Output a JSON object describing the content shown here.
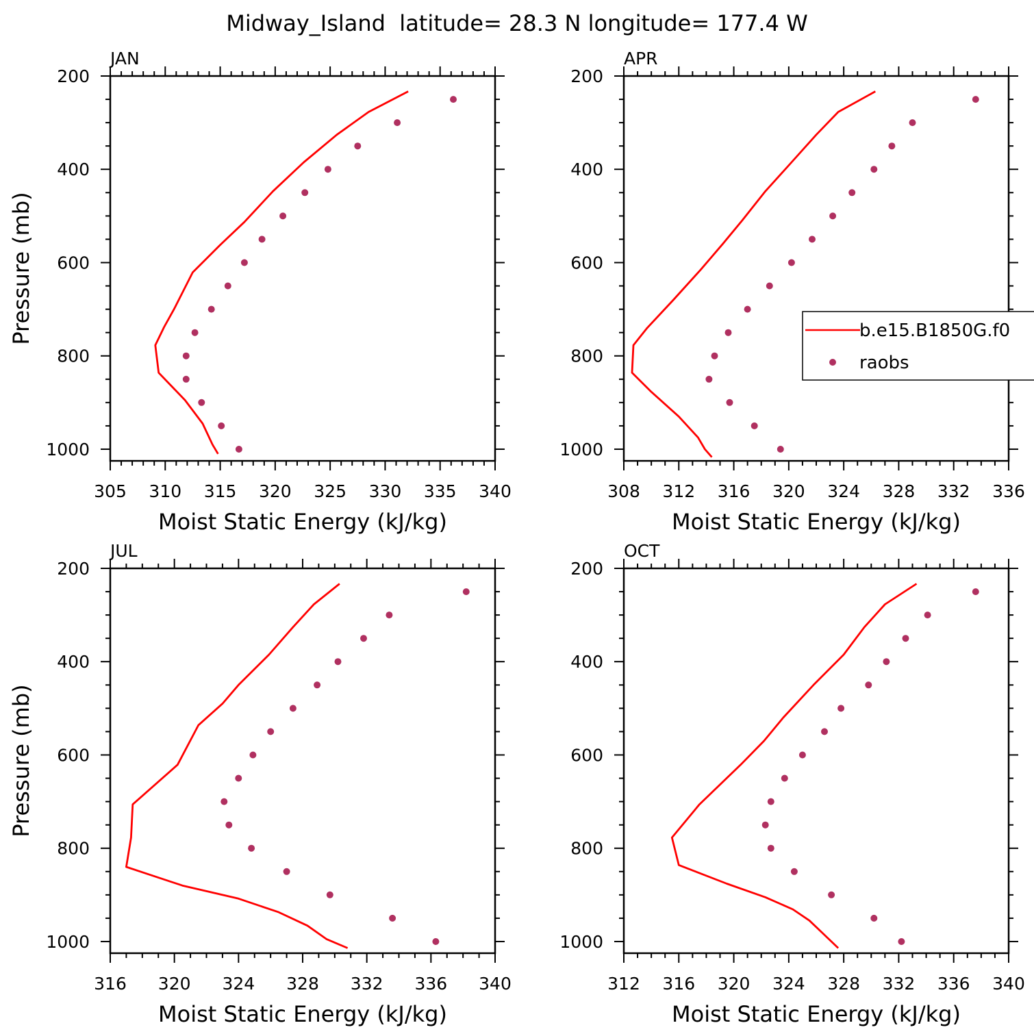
{
  "figure": {
    "title": "Midway_Island  latitude= 28.3 N longitude= 177.4 W"
  },
  "legend": {
    "model_label": "b.e15.B1850G.f0",
    "obs_label": "raobs",
    "placement": "right side of APR panel"
  },
  "colors": {
    "model_line": "#ff0000",
    "obs_marker": "#b03060"
  },
  "chart_data": [
    {
      "type": "line",
      "panel": "JAN",
      "xlabel": "Moist Static Energy (kJ/kg)",
      "ylabel": "Pressure (mb)",
      "xlim": [
        305,
        340
      ],
      "xticks": [
        305,
        310,
        315,
        320,
        325,
        330,
        335,
        340
      ],
      "ylim": [
        1025,
        200
      ],
      "yticks": [
        200,
        400,
        600,
        800,
        1000
      ],
      "series": [
        {
          "name": "b.e15.B1850G.f0",
          "points": [
            [
              332.1,
              233
            ],
            [
              328.5,
              277
            ],
            [
              325.6,
              326
            ],
            [
              322.6,
              385
            ],
            [
              319.8,
              447
            ],
            [
              317.2,
              513
            ],
            [
              315.0,
              562
            ],
            [
              312.5,
              621
            ],
            [
              310.8,
              700
            ],
            [
              309.9,
              738
            ],
            [
              309.1,
              777
            ],
            [
              309.4,
              836
            ],
            [
              311.8,
              895
            ],
            [
              313.4,
              945
            ],
            [
              314.3,
              990
            ],
            [
              314.8,
              1010
            ]
          ]
        },
        {
          "name": "raobs",
          "points": [
            [
              336.2,
              250
            ],
            [
              331.1,
              300
            ],
            [
              327.5,
              350
            ],
            [
              324.8,
              400
            ],
            [
              322.7,
              450
            ],
            [
              320.7,
              500
            ],
            [
              318.8,
              550
            ],
            [
              317.2,
              600
            ],
            [
              315.7,
              650
            ],
            [
              314.2,
              700
            ],
            [
              312.7,
              750
            ],
            [
              311.9,
              800
            ],
            [
              311.9,
              850
            ],
            [
              313.3,
              900
            ],
            [
              315.1,
              950
            ],
            [
              316.7,
              1000
            ]
          ]
        }
      ]
    },
    {
      "type": "line",
      "panel": "APR",
      "xlabel": "Moist Static Energy (kJ/kg)",
      "ylabel": "",
      "xlim": [
        308,
        336
      ],
      "xticks": [
        308,
        312,
        316,
        320,
        324,
        328,
        332,
        336
      ],
      "ylim": [
        1025,
        200
      ],
      "yticks": [
        200,
        400,
        600,
        800,
        1000
      ],
      "series": [
        {
          "name": "b.e15.B1850G.f0",
          "points": [
            [
              326.3,
              233
            ],
            [
              323.6,
              277
            ],
            [
              322.0,
              326
            ],
            [
              320.2,
              385
            ],
            [
              318.3,
              447
            ],
            [
              316.6,
              510
            ],
            [
              315.2,
              560
            ],
            [
              313.6,
              615
            ],
            [
              311.6,
              680
            ],
            [
              309.7,
              740
            ],
            [
              308.7,
              777
            ],
            [
              308.6,
              836
            ],
            [
              310.0,
              877
            ],
            [
              312.0,
              930
            ],
            [
              313.4,
              975
            ],
            [
              313.9,
              1000
            ],
            [
              314.4,
              1017
            ]
          ]
        },
        {
          "name": "raobs",
          "points": [
            [
              333.6,
              250
            ],
            [
              329.0,
              300
            ],
            [
              327.5,
              350
            ],
            [
              326.2,
              400
            ],
            [
              324.6,
              450
            ],
            [
              323.2,
              500
            ],
            [
              321.7,
              550
            ],
            [
              320.2,
              600
            ],
            [
              318.6,
              650
            ],
            [
              317.0,
              700
            ],
            [
              315.6,
              750
            ],
            [
              314.6,
              800
            ],
            [
              314.2,
              850
            ],
            [
              315.7,
              900
            ],
            [
              317.5,
              950
            ],
            [
              319.4,
              1000
            ]
          ]
        }
      ]
    },
    {
      "type": "line",
      "panel": "JUL",
      "xlabel": "Moist Static Energy (kJ/kg)",
      "ylabel": "Pressure (mb)",
      "xlim": [
        316,
        340
      ],
      "xticks": [
        316,
        320,
        324,
        328,
        332,
        336,
        340
      ],
      "ylim": [
        1025,
        200
      ],
      "yticks": [
        200,
        400,
        600,
        800,
        1000
      ],
      "series": [
        {
          "name": "b.e15.B1850G.f0",
          "points": [
            [
              330.3,
              233
            ],
            [
              328.7,
              277
            ],
            [
              327.4,
              326
            ],
            [
              325.9,
              385
            ],
            [
              324.0,
              450
            ],
            [
              323.0,
              490
            ],
            [
              321.5,
              536
            ],
            [
              320.2,
              621
            ],
            [
              317.4,
              706
            ],
            [
              317.3,
              777
            ],
            [
              317.0,
              840
            ],
            [
              320.5,
              880
            ],
            [
              324.0,
              908
            ],
            [
              326.5,
              937
            ],
            [
              328.3,
              966
            ],
            [
              329.5,
              995
            ],
            [
              330.8,
              1014
            ]
          ]
        },
        {
          "name": "raobs",
          "points": [
            [
              338.2,
              250
            ],
            [
              333.4,
              300
            ],
            [
              331.8,
              350
            ],
            [
              330.2,
              400
            ],
            [
              328.9,
              450
            ],
            [
              327.4,
              500
            ],
            [
              326.0,
              550
            ],
            [
              324.9,
              600
            ],
            [
              324.0,
              650
            ],
            [
              323.1,
              700
            ],
            [
              323.4,
              750
            ],
            [
              324.8,
              800
            ],
            [
              327.0,
              850
            ],
            [
              329.7,
              900
            ],
            [
              333.6,
              950
            ],
            [
              336.3,
              1000
            ]
          ]
        }
      ]
    },
    {
      "type": "line",
      "panel": "OCT",
      "xlabel": "Moist Static Energy (kJ/kg)",
      "ylabel": "",
      "xlim": [
        312,
        340
      ],
      "xticks": [
        312,
        316,
        320,
        324,
        328,
        332,
        336,
        340
      ],
      "ylim": [
        1025,
        200
      ],
      "yticks": [
        200,
        400,
        600,
        800,
        1000
      ],
      "series": [
        {
          "name": "b.e15.B1850G.f0",
          "points": [
            [
              333.3,
              233
            ],
            [
              331.0,
              277
            ],
            [
              329.5,
              326
            ],
            [
              328.0,
              385
            ],
            [
              325.8,
              450
            ],
            [
              323.6,
              520
            ],
            [
              322.2,
              570
            ],
            [
              320.5,
              621
            ],
            [
              317.5,
              706
            ],
            [
              315.5,
              777
            ],
            [
              316.0,
              836
            ],
            [
              319.5,
              876
            ],
            [
              322.3,
              905
            ],
            [
              324.3,
              931
            ],
            [
              325.5,
              955
            ],
            [
              326.5,
              983
            ],
            [
              327.6,
              1014
            ]
          ]
        },
        {
          "name": "raobs",
          "points": [
            [
              337.6,
              250
            ],
            [
              334.1,
              300
            ],
            [
              332.5,
              350
            ],
            [
              331.1,
              400
            ],
            [
              329.8,
              450
            ],
            [
              327.8,
              500
            ],
            [
              326.6,
              550
            ],
            [
              325.0,
              600
            ],
            [
              323.7,
              650
            ],
            [
              322.7,
              700
            ],
            [
              322.3,
              750
            ],
            [
              322.7,
              800
            ],
            [
              324.4,
              850
            ],
            [
              327.1,
              900
            ],
            [
              330.2,
              950
            ],
            [
              332.2,
              1000
            ]
          ]
        }
      ]
    }
  ]
}
